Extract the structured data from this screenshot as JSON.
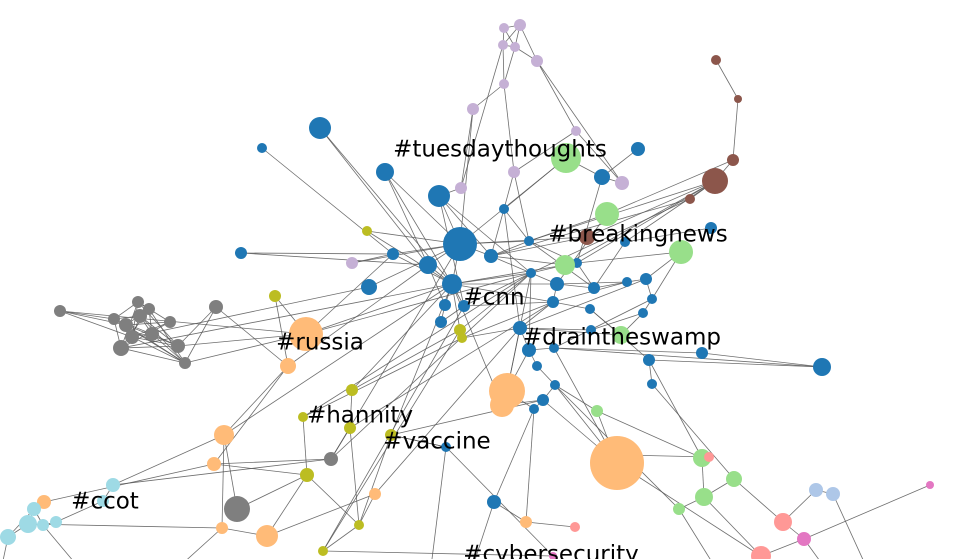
{
  "labels": [
    {
      "id": "tuesdaythoughts",
      "text": "#tuesdaythoughts",
      "anchor": "n_td"
    },
    {
      "id": "breakingnews",
      "text": "#breakingnews",
      "anchor": "n_bn"
    },
    {
      "id": "cnn",
      "text": "#cnn",
      "anchor": "n_cnn"
    },
    {
      "id": "draintheswamp",
      "text": "#draintheswamp",
      "anchor": "n_dts"
    },
    {
      "id": "russia",
      "text": "#russia",
      "anchor": "n_rus"
    },
    {
      "id": "hannity",
      "text": "#hannity",
      "anchor": "n_han"
    },
    {
      "id": "vaccine",
      "text": "#vaccine",
      "anchor": "n_vac"
    },
    {
      "id": "ccot",
      "text": "#ccot",
      "anchor": "n_ccot"
    },
    {
      "id": "cybersecurity",
      "text": "#cybersecurity",
      "anchor": "n_cyb"
    }
  ],
  "palette": {
    "blue": "#1f77b4",
    "orange": "#ffbb78",
    "green": "#98df8a",
    "purple": "#c5b0d5",
    "brown": "#8c564b",
    "gray": "#7f7f7f",
    "olive": "#bcbd22",
    "cyan": "#9edae5",
    "pink": "#ff9896",
    "lightblue": "#aec7e8",
    "magenta": "#e377c2",
    "edge": "#555555"
  }
}
